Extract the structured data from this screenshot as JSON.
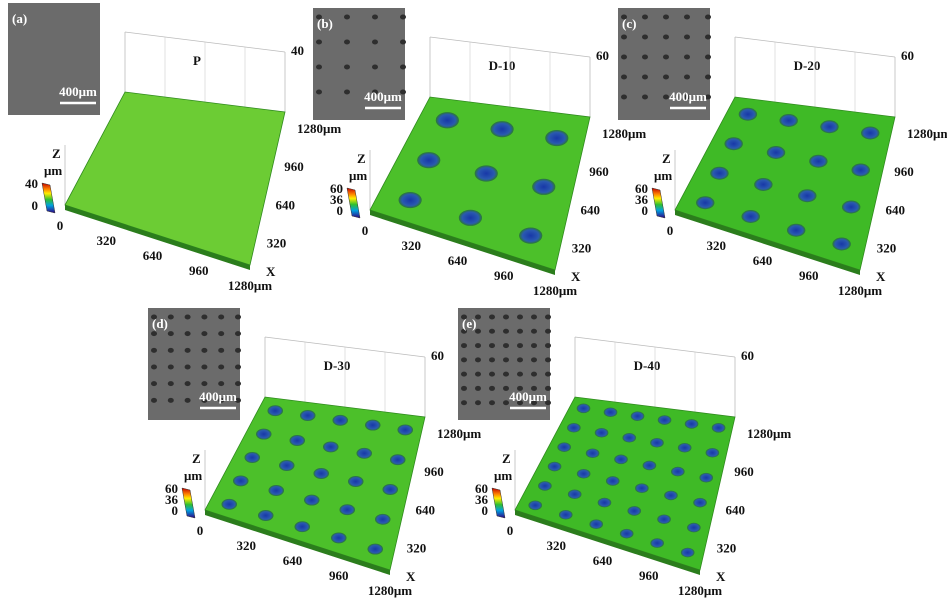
{
  "panels": [
    {
      "label": "(a)",
      "scale_bar": "400μm",
      "title": "P",
      "z_axis": {
        "label": "Z",
        "top": "40"
      },
      "colorbar": {
        "unit": "μm",
        "ticks": [
          "40",
          "0"
        ]
      },
      "y_ticks": [
        "1280μm",
        "960",
        "640",
        "320"
      ],
      "x_axis": {
        "label": "X",
        "ticks": [
          "0",
          "320",
          "640",
          "960",
          "1280μm"
        ]
      }
    },
    {
      "label": "(b)",
      "scale_bar": "400μm",
      "title": "D-10",
      "z_axis": {
        "label": "Z",
        "top": "60"
      },
      "colorbar": {
        "unit": "μm",
        "ticks": [
          "60",
          "36",
          "0"
        ]
      },
      "y_ticks": [
        "1280μm",
        "960",
        "640",
        "320"
      ],
      "x_axis": {
        "label": "X",
        "ticks": [
          "0",
          "320",
          "640",
          "960",
          "1280μm"
        ]
      }
    },
    {
      "label": "(c)",
      "scale_bar": "400μm",
      "title": "D-20",
      "z_axis": {
        "label": "Z",
        "top": "60"
      },
      "colorbar": {
        "unit": "μm",
        "ticks": [
          "60",
          "36",
          "0"
        ]
      },
      "y_ticks": [
        "1280μm",
        "960",
        "640",
        "320"
      ],
      "x_axis": {
        "label": "X",
        "ticks": [
          "0",
          "320",
          "640",
          "960",
          "1280μm"
        ]
      }
    },
    {
      "label": "(d)",
      "scale_bar": "400μm",
      "title": "D-30",
      "z_axis": {
        "label": "Z",
        "top": "60"
      },
      "colorbar": {
        "unit": "μm",
        "ticks": [
          "60",
          "36",
          "0"
        ]
      },
      "y_ticks": [
        "1280μm",
        "960",
        "640",
        "320"
      ],
      "x_axis": {
        "label": "X",
        "ticks": [
          "0",
          "320",
          "640",
          "960",
          "1280μm"
        ]
      }
    },
    {
      "label": "(e)",
      "scale_bar": "400μm",
      "title": "D-40",
      "z_axis": {
        "label": "Z",
        "top": "60"
      },
      "colorbar": {
        "unit": "μm",
        "ticks": [
          "60",
          "36",
          "0"
        ]
      },
      "y_ticks": [
        "1280μm",
        "960",
        "640",
        "320"
      ],
      "x_axis": {
        "label": "X",
        "ticks": [
          "0",
          "320",
          "640",
          "960",
          "1280μm"
        ]
      }
    }
  ]
}
